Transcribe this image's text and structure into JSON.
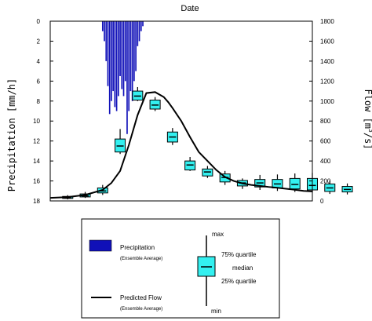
{
  "chart_data": {
    "type": "box-line-bar",
    "title": "Date",
    "left_axis": {
      "label": "Precipitation [mm/h]",
      "range": [
        0,
        18
      ],
      "inverted": true,
      "ticks": [
        0,
        2,
        4,
        6,
        8,
        10,
        12,
        14,
        16,
        18
      ]
    },
    "right_axis": {
      "label_main": "Flow [m",
      "label_sup": "3",
      "label_end": "/s]",
      "range": [
        0,
        1800
      ],
      "ticks": [
        0,
        200,
        400,
        600,
        800,
        1000,
        1200,
        1400,
        1600,
        1800
      ]
    },
    "x_range": [
      0,
      30
    ],
    "grid": false,
    "precipitation": {
      "color": "#1010b8",
      "x": [
        6.0,
        6.2,
        6.4,
        6.6,
        6.8,
        7.0,
        7.2,
        7.4,
        7.6,
        7.8,
        8.0,
        8.2,
        8.4,
        8.6,
        8.8,
        9.0,
        9.2,
        9.4,
        9.6,
        9.8,
        10.0,
        10.2,
        10.4,
        10.6
      ],
      "values": [
        1.0,
        2.0,
        4.0,
        6.5,
        9.3,
        8.0,
        7.0,
        8.6,
        9.0,
        7.5,
        5.5,
        6.8,
        7.5,
        6.0,
        11.3,
        9.0,
        7.0,
        8.0,
        6.0,
        5.0,
        2.5,
        2.0,
        1.0,
        0.5
      ]
    },
    "predicted_flow": {
      "color": "#000000",
      "x": [
        0,
        2,
        4,
        6,
        7,
        8,
        9,
        10,
        11,
        12,
        13,
        13.5,
        14,
        15,
        16,
        17,
        18,
        19,
        20,
        21,
        22,
        23,
        24,
        25,
        26,
        27,
        28,
        29,
        30
      ],
      "y": [
        30,
        38,
        60,
        110,
        180,
        300,
        560,
        860,
        1080,
        1090,
        1040,
        990,
        930,
        800,
        640,
        490,
        400,
        310,
        240,
        200,
        175,
        160,
        150,
        140,
        132,
        122,
        112,
        100,
        95
      ]
    },
    "boxes": {
      "color": "#33f0f0",
      "items": [
        {
          "x": 2,
          "min": 15,
          "q1": 25,
          "median": 32,
          "q3": 45,
          "max": 58
        },
        {
          "x": 4,
          "min": 30,
          "q1": 40,
          "median": 50,
          "q3": 70,
          "max": 90
        },
        {
          "x": 6,
          "min": 60,
          "q1": 80,
          "median": 100,
          "q3": 130,
          "max": 160
        },
        {
          "x": 8,
          "min": 470,
          "q1": 490,
          "median": 550,
          "q3": 620,
          "max": 720
        },
        {
          "x": 10,
          "min": 1000,
          "q1": 1010,
          "median": 1050,
          "q3": 1100,
          "max": 1140
        },
        {
          "x": 12,
          "min": 900,
          "q1": 920,
          "median": 960,
          "q3": 1010,
          "max": 1040
        },
        {
          "x": 14,
          "min": 560,
          "q1": 590,
          "median": 640,
          "q3": 690,
          "max": 730
        },
        {
          "x": 16,
          "min": 300,
          "q1": 310,
          "median": 360,
          "q3": 400,
          "max": 440
        },
        {
          "x": 18,
          "min": 230,
          "q1": 250,
          "median": 290,
          "q3": 320,
          "max": 350
        },
        {
          "x": 20,
          "min": 160,
          "q1": 190,
          "median": 235,
          "q3": 270,
          "max": 300
        },
        {
          "x": 22,
          "min": 120,
          "q1": 150,
          "median": 180,
          "q3": 205,
          "max": 225
        },
        {
          "x": 24,
          "min": 110,
          "q1": 140,
          "median": 180,
          "q3": 215,
          "max": 260
        },
        {
          "x": 26,
          "min": 100,
          "q1": 130,
          "median": 170,
          "q3": 215,
          "max": 265
        },
        {
          "x": 28,
          "min": 90,
          "q1": 120,
          "median": 165,
          "q3": 225,
          "max": 275
        },
        {
          "x": 30,
          "min": 85,
          "q1": 110,
          "median": 155,
          "q3": 225,
          "max": 280
        },
        {
          "x": 32,
          "min": 70,
          "q1": 95,
          "median": 130,
          "q3": 170,
          "max": 205
        },
        {
          "x": 34,
          "min": 65,
          "q1": 90,
          "median": 115,
          "q3": 145,
          "max": 175
        }
      ]
    }
  },
  "legend": {
    "precipitation_label": "Precipitation",
    "precipitation_sub": "(Ensemble Average)",
    "flow_label": "Predicted Flow",
    "flow_sub": "(Ensemble Average)",
    "box_max": "max",
    "box_q3": "75% quartile",
    "box_median": "median",
    "box_q1": "25% quartile",
    "box_min": "min"
  }
}
